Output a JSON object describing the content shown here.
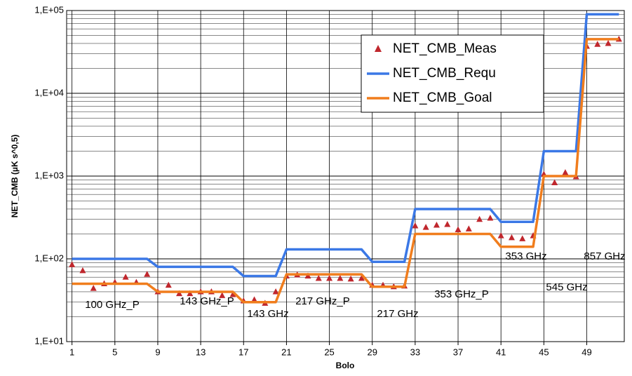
{
  "chart_data": {
    "type": "line",
    "y_label": "NET_CMB (µK s^0,5)",
    "x_label": "Bolo",
    "log_y": true,
    "grid": true,
    "legend": "top-right",
    "x": [
      1,
      2,
      3,
      4,
      5,
      6,
      7,
      8,
      9,
      10,
      11,
      12,
      13,
      14,
      15,
      16,
      17,
      18,
      19,
      20,
      21,
      22,
      23,
      24,
      25,
      26,
      27,
      28,
      29,
      30,
      31,
      32,
      33,
      34,
      35,
      36,
      37,
      38,
      39,
      40,
      41,
      42,
      43,
      44,
      45,
      46,
      47,
      48,
      49,
      50,
      51,
      52
    ],
    "xlim": [
      0.5,
      52.5
    ],
    "xticks": [
      1,
      5,
      9,
      13,
      17,
      21,
      25,
      29,
      33,
      37,
      41,
      45,
      49
    ],
    "ylim": [
      10,
      100000
    ],
    "yticks": [
      {
        "value": 10,
        "label": "1,E+01"
      },
      {
        "value": 100,
        "label": "1,E+02"
      },
      {
        "value": 1000,
        "label": "1,E+03"
      },
      {
        "value": 10000,
        "label": "1,E+04"
      },
      {
        "value": 100000,
        "label": "1,E+05"
      }
    ],
    "series": [
      {
        "name": "NET_CMB_Meas",
        "color": "#c0272d",
        "marker": "triangle",
        "values": [
          85,
          72,
          44,
          50,
          52,
          60,
          52,
          65,
          40,
          48,
          38,
          38,
          40,
          40,
          36,
          37,
          31,
          32,
          29,
          40,
          62,
          64,
          62,
          58,
          58,
          58,
          57,
          58,
          48,
          48,
          46,
          47,
          250,
          240,
          255,
          260,
          225,
          230,
          300,
          310,
          190,
          180,
          175,
          190,
          1050,
          830,
          1100,
          980,
          37000,
          39000,
          40000,
          45000
        ]
      },
      {
        "name": "NET_CMB_Requ",
        "color": "#3b78e6",
        "marker": "none",
        "values": [
          100,
          100,
          100,
          100,
          100,
          100,
          100,
          100,
          80,
          80,
          80,
          80,
          80,
          80,
          80,
          80,
          62,
          62,
          62,
          62,
          130,
          130,
          130,
          130,
          130,
          130,
          130,
          130,
          92,
          92,
          92,
          92,
          400,
          400,
          400,
          400,
          400,
          400,
          400,
          400,
          280,
          280,
          280,
          280,
          2000,
          2000,
          2000,
          2000,
          90000,
          90000,
          90000,
          90000
        ]
      },
      {
        "name": "NET_CMB_Goal",
        "color": "#f07d1d",
        "marker": "none",
        "values": [
          50,
          50,
          50,
          50,
          50,
          50,
          50,
          50,
          40,
          40,
          40,
          40,
          40,
          40,
          40,
          40,
          30,
          30,
          30,
          30,
          65,
          65,
          65,
          65,
          65,
          65,
          65,
          65,
          46,
          46,
          46,
          46,
          200,
          200,
          200,
          200,
          200,
          200,
          200,
          200,
          140,
          140,
          140,
          140,
          1000,
          1000,
          1000,
          1000,
          45000,
          45000,
          45000,
          45000
        ]
      }
    ],
    "annotations": [
      "100 GHz_P",
      "143 GHz_P",
      "143 GHz",
      "217 GHz_P",
      "217 GHz",
      "353 GHz_P",
      "353 GHz",
      "545 GHz",
      "857 GHz"
    ]
  }
}
